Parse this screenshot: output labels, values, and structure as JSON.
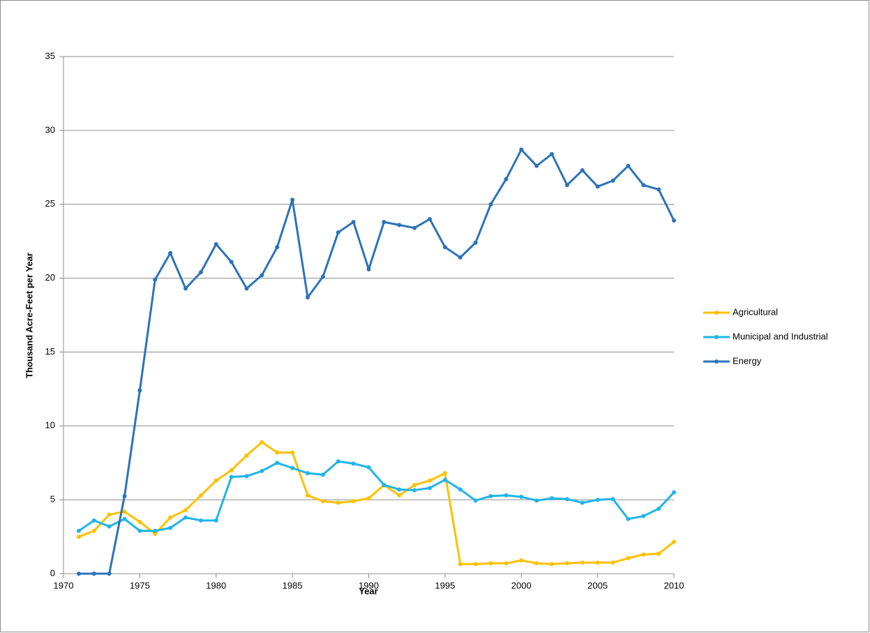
{
  "chart_data": {
    "type": "line",
    "x_label": "Year",
    "y_label": "Thousand Acre-Feet per Year",
    "x": [
      1971,
      1972,
      1973,
      1974,
      1975,
      1976,
      1977,
      1978,
      1979,
      1980,
      1981,
      1982,
      1983,
      1984,
      1985,
      1986,
      1987,
      1988,
      1989,
      1990,
      1991,
      1992,
      1993,
      1994,
      1995,
      1996,
      1997,
      1998,
      1999,
      2000,
      2001,
      2002,
      2003,
      2004,
      2005,
      2006,
      2007,
      2008,
      2009,
      2010
    ],
    "series": [
      {
        "name": "Agricultural",
        "color": "#ffc000",
        "values": [
          2.5,
          2.9,
          4.0,
          4.2,
          3.5,
          2.7,
          3.8,
          4.3,
          5.3,
          6.3,
          7.0,
          8.0,
          8.9,
          8.2,
          8.2,
          5.3,
          4.9,
          4.8,
          4.9,
          5.1,
          6.0,
          5.3,
          6.0,
          6.3,
          6.8,
          0.65,
          0.65,
          0.7,
          0.7,
          0.9,
          0.7,
          0.65,
          0.7,
          0.75,
          0.75,
          0.75,
          1.05,
          1.3,
          1.35,
          2.15
        ]
      },
      {
        "name": "Municipal and Industrial",
        "color": "#1fb4ea",
        "values": [
          2.9,
          3.6,
          3.2,
          3.7,
          2.9,
          2.9,
          3.1,
          3.8,
          3.6,
          3.6,
          6.55,
          6.6,
          6.95,
          7.5,
          7.15,
          6.8,
          6.7,
          7.6,
          7.45,
          7.2,
          6.0,
          5.7,
          5.65,
          5.8,
          6.35,
          5.7,
          4.95,
          5.25,
          5.3,
          5.2,
          4.95,
          5.1,
          5.05,
          4.8,
          5.0,
          5.05,
          3.7,
          3.9,
          4.4,
          5.5
        ]
      },
      {
        "name": "Energy",
        "color": "#2b73b8",
        "values": [
          0,
          0,
          0,
          5.25,
          12.4,
          19.9,
          21.7,
          19.3,
          20.4,
          22.3,
          21.1,
          19.3,
          20.2,
          22.1,
          25.3,
          18.7,
          20.1,
          23.1,
          23.8,
          20.6,
          23.8,
          23.6,
          23.4,
          24.0,
          22.1,
          21.4,
          22.4,
          25.0,
          26.7,
          28.7,
          27.6,
          28.4,
          26.3,
          27.3,
          26.2,
          26.6,
          27.6,
          26.3,
          26.0,
          23.9
        ]
      }
    ],
    "xlim": [
      1970,
      2010
    ],
    "xticks": [
      1970,
      1975,
      1980,
      1985,
      1990,
      1995,
      2000,
      2005,
      2010
    ],
    "ylim": [
      0,
      35
    ],
    "yticks": [
      0,
      5,
      10,
      15,
      20,
      25,
      30,
      35
    ],
    "grid": true,
    "legend": "right"
  }
}
